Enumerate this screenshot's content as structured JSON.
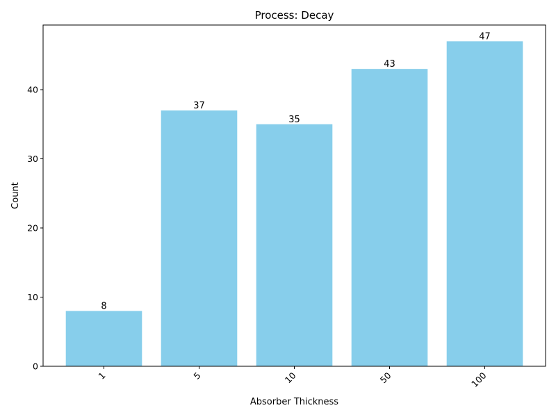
{
  "chart_data": {
    "type": "bar",
    "title": "Process: Decay",
    "xlabel": "Absorber Thickness",
    "ylabel": "Count",
    "categories": [
      "1",
      "5",
      "10",
      "50",
      "100"
    ],
    "values": [
      8,
      37,
      35,
      43,
      47
    ],
    "data_labels": [
      "8",
      "37",
      "35",
      "43",
      "47"
    ],
    "ylim": [
      0,
      49.35
    ],
    "yticks": [
      0,
      10,
      20,
      30,
      40
    ],
    "ytick_labels": [
      "0",
      "10",
      "20",
      "30",
      "40"
    ],
    "xtick_rotation_deg": 45,
    "bar_color": "#87ceeb",
    "grid": false,
    "legend": "none"
  }
}
